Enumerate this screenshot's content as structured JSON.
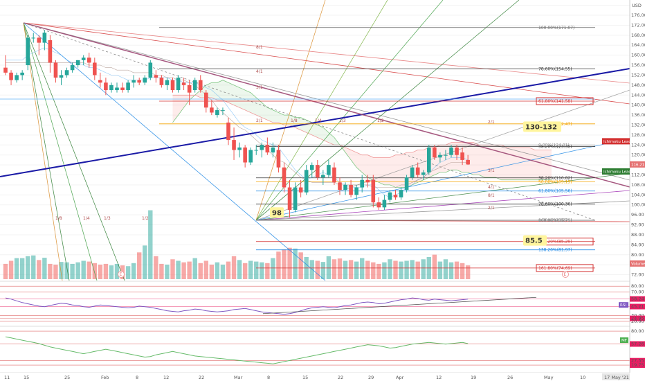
{
  "chart_data": {
    "type": "candlestick",
    "currency": "USD",
    "price_ticks": [
      "180.00",
      "176.00",
      "172.00",
      "168.00",
      "164.00",
      "160.00",
      "156.00",
      "152.00",
      "148.00",
      "144.00",
      "140.00",
      "136.00",
      "132.00",
      "128.00",
      "124.00",
      "120.00",
      "116.00",
      "112.00",
      "108.00",
      "104.00",
      "100.00",
      "96.00",
      "92.00",
      "88.00",
      "84.00",
      "80.00",
      "76.00",
      "72.00"
    ],
    "ylim": [
      70.5,
      181
    ],
    "x_ticks": [
      "11",
      "15",
      "25",
      "Feb",
      "8",
      "12",
      "22",
      "Mar",
      "8",
      "15",
      "22",
      "29",
      "Apr",
      "12",
      "19",
      "26",
      "May",
      "10"
    ],
    "date_badge": "17 May '21",
    "candles": [
      [
        155,
        160,
        152,
        153
      ],
      [
        153,
        154,
        148,
        150
      ],
      [
        150,
        153,
        149,
        152
      ],
      [
        152,
        154,
        150,
        153
      ],
      [
        156,
        168,
        154,
        167
      ],
      [
        167,
        169,
        165,
        167
      ],
      [
        167,
        168,
        160,
        165
      ],
      [
        165,
        170,
        162,
        169
      ],
      [
        166,
        168,
        153,
        157
      ],
      [
        157,
        158,
        149,
        151
      ],
      [
        151,
        154,
        148,
        152
      ],
      [
        152,
        155,
        151,
        154
      ],
      [
        154,
        157,
        153,
        156
      ],
      [
        156,
        158,
        155,
        158
      ],
      [
        158,
        160,
        156,
        159
      ],
      [
        159,
        161,
        155,
        157
      ],
      [
        157,
        159,
        150,
        152
      ],
      [
        150,
        153,
        147,
        149
      ],
      [
        149,
        151,
        144,
        146
      ],
      [
        146,
        149,
        145,
        148
      ],
      [
        146,
        149,
        145,
        147
      ],
      [
        147,
        149,
        145,
        146
      ],
      [
        146,
        150,
        145,
        149
      ],
      [
        149,
        152,
        147,
        150
      ],
      [
        150,
        151,
        148,
        149
      ],
      [
        149,
        152,
        148,
        151
      ],
      [
        151,
        158,
        150,
        157
      ],
      [
        152,
        154,
        149,
        151
      ],
      [
        151,
        152,
        147,
        148
      ],
      [
        148,
        151,
        146,
        150
      ],
      [
        150,
        151,
        145,
        146
      ],
      [
        146,
        152,
        145,
        151
      ],
      [
        149,
        151,
        146,
        148
      ],
      [
        148,
        150,
        140,
        145
      ],
      [
        146,
        151,
        145,
        150
      ],
      [
        150,
        152,
        145,
        146
      ],
      [
        145,
        146,
        137,
        139
      ],
      [
        139,
        142,
        136,
        137
      ],
      [
        136,
        139,
        135,
        138
      ],
      [
        138,
        139,
        136,
        138
      ],
      [
        133,
        135,
        124,
        126
      ],
      [
        126,
        131,
        118,
        122
      ],
      [
        122,
        125,
        119,
        123
      ],
      [
        123,
        124,
        115,
        117
      ],
      [
        117,
        123,
        116,
        122
      ],
      [
        122,
        124,
        120,
        122
      ],
      [
        122,
        125,
        119,
        124
      ],
      [
        124,
        127,
        120,
        121
      ],
      [
        121,
        125,
        119,
        123
      ],
      [
        122,
        124,
        113,
        115
      ],
      [
        115,
        117,
        105,
        107
      ],
      [
        107,
        110,
        95,
        98
      ],
      [
        98,
        109,
        97,
        107
      ],
      [
        107,
        110,
        103,
        105
      ],
      [
        105,
        116,
        104,
        114
      ],
      [
        114,
        117,
        111,
        116
      ],
      [
        116,
        118,
        110,
        111
      ],
      [
        111,
        114,
        108,
        112
      ],
      [
        112,
        118,
        111,
        116
      ],
      [
        115,
        117,
        108,
        109
      ],
      [
        109,
        111,
        104,
        106
      ],
      [
        106,
        109,
        104,
        108
      ],
      [
        108,
        110,
        103,
        104
      ],
      [
        104,
        108,
        102,
        107
      ],
      [
        107,
        112,
        105,
        110
      ],
      [
        110,
        112,
        107,
        109
      ],
      [
        110,
        112,
        99,
        101
      ],
      [
        101,
        103,
        98,
        99
      ],
      [
        99,
        104,
        98,
        102
      ],
      [
        102,
        106,
        101,
        105
      ],
      [
        104,
        106,
        102,
        103
      ],
      [
        103,
        107,
        102,
        106
      ],
      [
        106,
        112,
        105,
        111
      ],
      [
        111,
        116,
        110,
        115
      ],
      [
        115,
        117,
        111,
        112
      ],
      [
        112,
        114,
        110,
        113
      ],
      [
        113,
        124,
        112,
        123
      ],
      [
        123,
        124,
        118,
        119
      ],
      [
        119,
        121,
        117,
        120
      ],
      [
        120,
        122,
        118,
        120
      ],
      [
        120,
        124,
        119,
        123
      ],
      [
        123,
        124,
        118,
        120
      ],
      [
        121,
        123,
        116,
        118
      ],
      [
        118,
        120,
        116,
        116.2
      ]
    ],
    "volume": [
      40,
      48,
      55,
      55,
      60,
      62,
      50,
      56,
      40,
      38,
      45,
      44,
      40,
      44,
      48,
      46,
      42,
      38,
      40,
      36,
      40,
      36,
      34,
      42,
      70,
      88,
      180,
      60,
      40,
      38,
      52,
      48,
      44,
      46,
      55,
      42,
      48,
      38,
      44,
      38,
      46,
      60,
      50,
      42,
      48,
      46,
      44,
      42,
      55,
      72,
      78,
      82,
      80,
      70,
      58,
      50,
      48,
      45,
      60,
      52,
      54,
      48,
      50,
      46,
      55,
      48,
      44,
      40,
      44,
      52,
      48,
      46,
      48,
      50,
      46,
      52,
      58,
      64,
      46,
      52,
      44,
      46,
      42,
      36
    ],
    "overlays": {
      "tenkan": [
        158,
        158,
        158,
        158,
        160,
        161,
        162,
        163,
        162,
        161,
        160,
        158,
        157,
        157,
        156,
        155,
        155,
        154,
        153,
        152,
        152,
        151,
        150,
        150,
        150,
        150,
        151,
        151,
        151,
        151,
        150,
        150,
        149,
        149,
        149,
        148,
        147,
        146,
        144,
        142,
        139,
        136,
        133,
        131,
        130,
        128,
        126,
        125,
        124,
        123,
        120,
        117,
        114,
        112,
        110,
        111,
        112,
        113,
        112,
        111,
        109,
        108,
        107,
        107,
        107,
        108,
        108,
        106,
        104,
        103,
        104,
        105,
        107,
        108,
        110,
        111,
        113,
        115,
        117,
        118,
        119,
        119,
        119,
        118
      ],
      "kijun": [
        157,
        157,
        157,
        157,
        157,
        157,
        157,
        157,
        157,
        157,
        157,
        157,
        157,
        157,
        157,
        156,
        156,
        156,
        155,
        155,
        154,
        154,
        154,
        153,
        153,
        153,
        153,
        152,
        152,
        151,
        151,
        150,
        150,
        149,
        148,
        146,
        144,
        142,
        139,
        137,
        135,
        133,
        131,
        130,
        128,
        126,
        124,
        122,
        120,
        118,
        117,
        115,
        113,
        111,
        110,
        109,
        109,
        109,
        109,
        109,
        108,
        108,
        108,
        108,
        108,
        108,
        107,
        107,
        107,
        107,
        107,
        108,
        108,
        109,
        110,
        111,
        113,
        114,
        115,
        116,
        117,
        117,
        117,
        117
      ],
      "cloud_a": [
        null,
        null,
        null,
        null,
        null,
        null,
        null,
        null,
        null,
        null,
        null,
        null,
        null,
        null,
        null,
        null,
        null,
        null,
        null,
        null,
        null,
        null,
        null,
        null,
        null,
        null,
        null,
        null,
        null,
        null,
        133,
        136,
        139,
        142,
        144,
        146,
        148,
        149,
        149,
        150,
        149,
        148,
        147,
        146,
        145,
        143,
        141,
        139,
        138,
        137,
        136,
        136,
        135,
        135,
        134,
        133,
        132,
        131,
        129,
        127,
        124,
        121,
        118,
        115,
        113,
        111,
        110,
        109,
        108,
        108,
        107,
        107,
        107,
        108,
        109,
        110,
        111,
        112,
        113,
        113,
        114,
        114,
        113,
        113,
        112,
        112,
        111,
        111,
        111,
        110,
        110,
        110,
        110,
        110,
        110,
        110,
        110,
        110,
        110
      ],
      "cloud_b": [
        null,
        null,
        null,
        null,
        null,
        null,
        null,
        null,
        null,
        null,
        null,
        null,
        null,
        null,
        null,
        null,
        null,
        null,
        null,
        null,
        null,
        null,
        null,
        null,
        null,
        null,
        null,
        null,
        null,
        null,
        144,
        144,
        144,
        144,
        144,
        143,
        143,
        143,
        142,
        142,
        141,
        140,
        139,
        138,
        137,
        136,
        135,
        134,
        133,
        133,
        132,
        132,
        131,
        130,
        129,
        128,
        127,
        126,
        125,
        124,
        124,
        123,
        122,
        121,
        120,
        120,
        119,
        119,
        119,
        119,
        120,
        120,
        121,
        121,
        122,
        122,
        123,
        123,
        124,
        124,
        125,
        125,
        125,
        125,
        125,
        124,
        124,
        124,
        124,
        124,
        123,
        123,
        123,
        123,
        123,
        122,
        122,
        122,
        122
      ],
      "lagging": [
        null,
        null,
        null,
        null,
        null,
        null,
        null,
        null,
        null,
        null,
        null,
        null,
        null,
        null,
        null,
        null,
        null,
        null,
        null,
        null,
        null,
        null,
        null,
        null,
        null,
        null,
        null,
        null,
        null,
        null,
        null,
        null,
        null,
        null,
        null,
        null,
        null,
        null,
        null,
        null,
        null,
        null,
        null,
        null,
        null,
        null,
        null,
        null,
        null,
        null,
        null,
        null,
        null,
        null,
        null,
        null,
        null,
        null,
        null,
        null,
        null,
        null,
        null,
        null,
        null,
        null,
        null,
        null,
        null,
        null,
        null,
        null,
        null,
        null,
        null,
        null,
        null,
        null,
        null,
        null,
        null,
        null,
        null,
        null
      ],
      "ichimoku_lead2_value": "Ichimoku Lead 2",
      "ichimoku_lead1_value": "Ichimoku Lead 1"
    },
    "fib_levels": [
      {
        "label": "100.00%(171.07)",
        "price": 171.07,
        "color": "#666666"
      },
      {
        "label": "78.60%(154.55)",
        "price": 154.55,
        "color": "#333333"
      },
      {
        "label": "61.80%(141.58)",
        "price": 141.58,
        "color": "#d32f2f",
        "boxed": true
      },
      {
        "label": "50.00%(132.47)",
        "price": 132.47,
        "color": "#f4a300"
      },
      {
        "label": "38.20%(123.36)",
        "price": 123.36,
        "color": "#333333"
      },
      {
        "label": "0.00%(124.01)",
        "price": 124.01,
        "color": "#888888"
      },
      {
        "label": "38.20%(110.82)",
        "price": 110.82,
        "color": "#333333"
      },
      {
        "label": "50.00%(109.19)",
        "price": 109.19,
        "color": "#f4a300"
      },
      {
        "label": "61.80%(105.56)",
        "price": 105.56,
        "color": "#1e88e5"
      },
      {
        "label": "78.60%(100.36)",
        "price": 100.36,
        "color": "#333333"
      },
      {
        "label": "100.00%(93.79)",
        "price": 93.79,
        "color": "#666666"
      },
      {
        "label": "0.00%(93.87)",
        "price": 93.87,
        "color": "#888888"
      },
      {
        "label": "127.20%(85.29)",
        "price": 85.29,
        "color": "#d32f2f",
        "boxed": true
      },
      {
        "label": "138.20%(81.97)",
        "price": 81.97,
        "color": "#1e88e5"
      },
      {
        "label": "161.80%(74.69)",
        "price": 74.69,
        "color": "#d32f2f",
        "boxed": true
      }
    ],
    "annotations": [
      {
        "text": "130-132",
        "price": 131.2,
        "bg": "#fff59d"
      },
      {
        "text": "98",
        "price": 96.8,
        "bg": "#fff59d"
      },
      {
        "text": "85.5",
        "price": 85.6,
        "bg": "#fff59d"
      }
    ],
    "gann_labels": [
      "8/1",
      "4/1",
      "3/1",
      "2/1",
      "1/8",
      "1/4",
      "1/3",
      "1/2",
      "1/8",
      "1/4",
      "1/3",
      "1/2",
      "2/1",
      "3/1",
      "4/1",
      "8/1",
      "2/1"
    ],
    "right_axis_labels": [
      {
        "text": "Ichimoku Lead 2",
        "price": 125.5,
        "color": "#d32f2f"
      },
      {
        "text": "Ichimoku Lead 1",
        "price": 113.4,
        "color": "#2e7d32"
      },
      {
        "text": "116.21",
        "price": 116.21,
        "color": "#e57373"
      },
      {
        "text": "Volume",
        "price": 76.5,
        "color": "#e57373"
      }
    ],
    "rsi": {
      "ticks": [
        "80.00",
        "70.00",
        "58.24",
        "45.21",
        "30.00",
        "24.95",
        "20.00"
      ],
      "label": "RSI",
      "values": [
        60,
        58,
        55,
        52,
        50,
        48,
        46,
        45,
        47,
        49,
        51,
        50,
        48,
        47,
        45,
        44,
        46,
        48,
        47,
        46,
        45,
        44,
        43,
        44,
        46,
        45,
        44,
        42,
        40,
        38,
        37,
        36,
        38,
        39,
        41,
        40,
        38,
        37,
        36,
        37,
        38,
        40,
        41,
        42,
        40,
        38,
        36,
        35,
        34,
        33,
        32,
        33,
        35,
        38,
        41,
        43,
        44,
        45,
        44,
        43,
        45,
        47,
        48,
        50,
        52,
        53,
        52,
        50,
        51,
        53,
        55,
        57,
        58,
        60,
        59,
        57,
        56,
        58,
        57,
        56,
        55,
        56,
        57,
        58
      ]
    },
    "mf": {
      "ticks": [
        "80.00",
        "57.26",
        "27.55",
        "19.75"
      ],
      "label": "MF",
      "values": [
        70,
        68,
        66,
        64,
        62,
        60,
        58,
        55,
        52,
        50,
        48,
        46,
        44,
        42,
        40,
        42,
        44,
        46,
        48,
        46,
        44,
        42,
        40,
        38,
        36,
        34,
        35,
        38,
        40,
        42,
        44,
        42,
        40,
        38,
        36,
        35,
        34,
        33,
        32,
        31,
        30,
        29,
        28,
        27,
        26,
        25,
        24,
        23,
        22,
        24,
        26,
        28,
        30,
        32,
        34,
        36,
        38,
        40,
        42,
        44,
        46,
        48,
        50,
        52,
        54,
        56,
        55,
        54,
        52,
        50,
        51,
        53,
        55,
        57,
        58,
        59,
        60,
        59,
        58,
        57,
        58,
        59,
        60,
        58
      ]
    },
    "series": [
      {
        "name": "Volume"
      },
      {
        "name": "RSI"
      },
      {
        "name": "MF"
      }
    ]
  }
}
